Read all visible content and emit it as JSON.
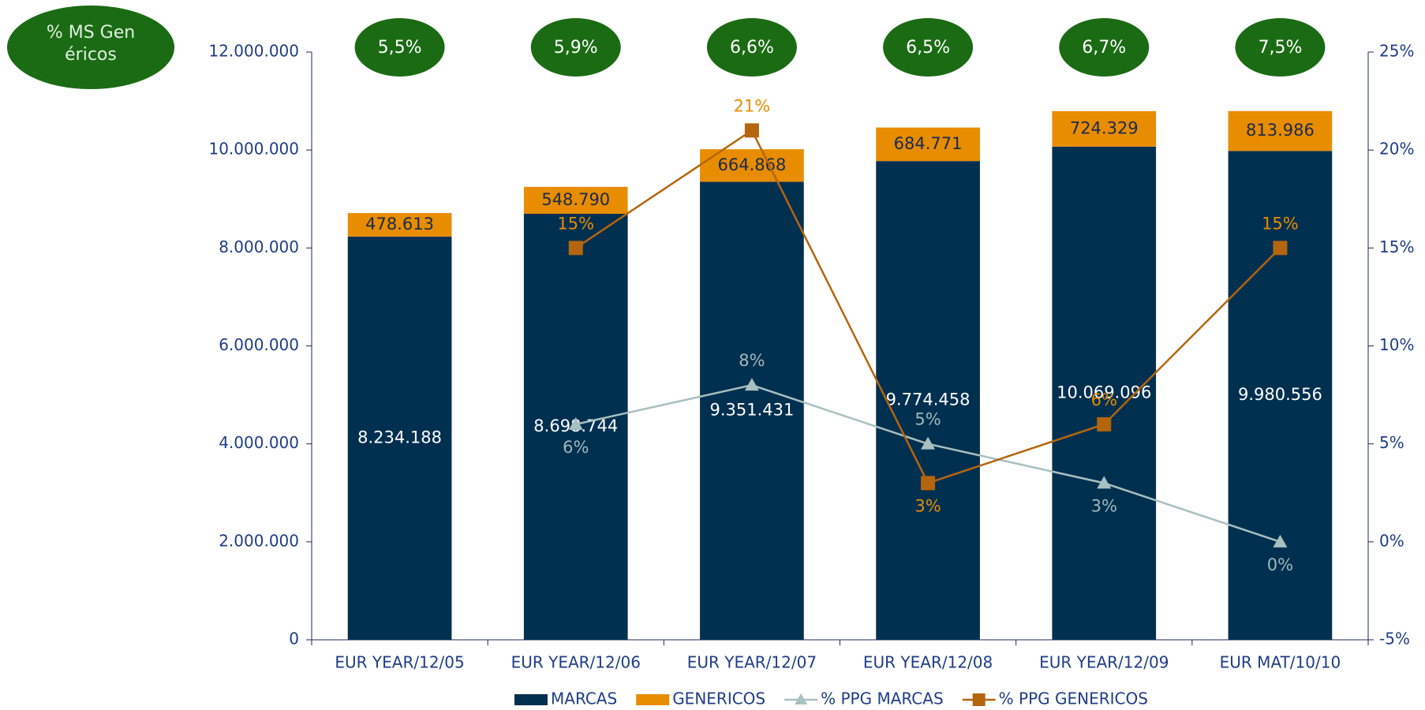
{
  "chart_data": {
    "type": "bar",
    "stacked": true,
    "categories": [
      "EUR YEAR/12/05",
      "EUR YEAR/12/06",
      "EUR YEAR/12/07",
      "EUR YEAR/12/08",
      "EUR YEAR/12/09",
      "EUR MAT/10/10"
    ],
    "series": [
      {
        "name": "MARCAS",
        "type": "bar",
        "color": "#003050",
        "label_color": "#ffffff",
        "values": [
          8234188,
          8698744,
          9351431,
          9774458,
          10069096,
          9980556
        ],
        "value_labels": [
          "8.234.188",
          "8.698.744",
          "9.351.431",
          "9.774.458",
          "10.069.096",
          "9.980.556"
        ]
      },
      {
        "name": "GENERICOS",
        "type": "bar",
        "color": "#e88c00",
        "label_color": "#1a2a50",
        "values": [
          478613,
          548790,
          664868,
          684771,
          724329,
          813986
        ],
        "value_labels": [
          "478.613",
          "548.790",
          "664.868",
          "684.771",
          "724.329",
          "813.986"
        ]
      },
      {
        "name": "% PPG MARCAS",
        "type": "line",
        "axis": "y2",
        "marker": "triangle",
        "color": "#a8c0c0",
        "label_color": "#a0b8b8",
        "values": [
          null,
          6,
          8,
          5,
          3,
          0
        ],
        "value_labels": [
          null,
          "6%",
          "8%",
          "5%",
          "3%",
          "0%"
        ]
      },
      {
        "name": "% PPG GENERICOS",
        "type": "line",
        "axis": "y2",
        "marker": "square",
        "color": "#b5650d",
        "label_color": "#e88c00",
        "values": [
          null,
          15,
          21,
          3,
          6,
          15
        ],
        "value_labels": [
          null,
          "15%",
          "21%",
          "3%",
          "6%",
          "15%"
        ]
      }
    ],
    "share": {
      "label": "% MS Genéricos",
      "color": "#1b6b14",
      "values": [
        5.5,
        5.9,
        6.6,
        6.5,
        6.7,
        7.5
      ],
      "value_labels": [
        "5,5%",
        "5,9%",
        "6,6%",
        "6,5%",
        "6,7%",
        "7,5%"
      ]
    },
    "ylim": [
      0,
      12000000
    ],
    "yticks": [
      0,
      {
        "value": 2000000,
        "label": "2.000.000"
      },
      {
        "value": 4000000,
        "label": "4.000.000"
      },
      {
        "value": 6000000,
        "label": "6.000.000"
      },
      {
        "value": 8000000,
        "label": "8.000.000"
      },
      {
        "value": 10000000,
        "label": "10.000.000"
      },
      {
        "value": 12000000,
        "label": "12.000.000"
      }
    ],
    "y2lim": [
      -5,
      25
    ],
    "y2ticks": [
      {
        "value": -5,
        "label": "-5%"
      },
      {
        "value": 0,
        "label": "0%"
      },
      {
        "value": 5,
        "label": "5%"
      },
      {
        "value": 10,
        "label": "10%"
      },
      {
        "value": 15,
        "label": "15%"
      },
      {
        "value": 20,
        "label": "20%"
      },
      {
        "value": 25,
        "label": "25%"
      }
    ],
    "legend": "bottom"
  }
}
